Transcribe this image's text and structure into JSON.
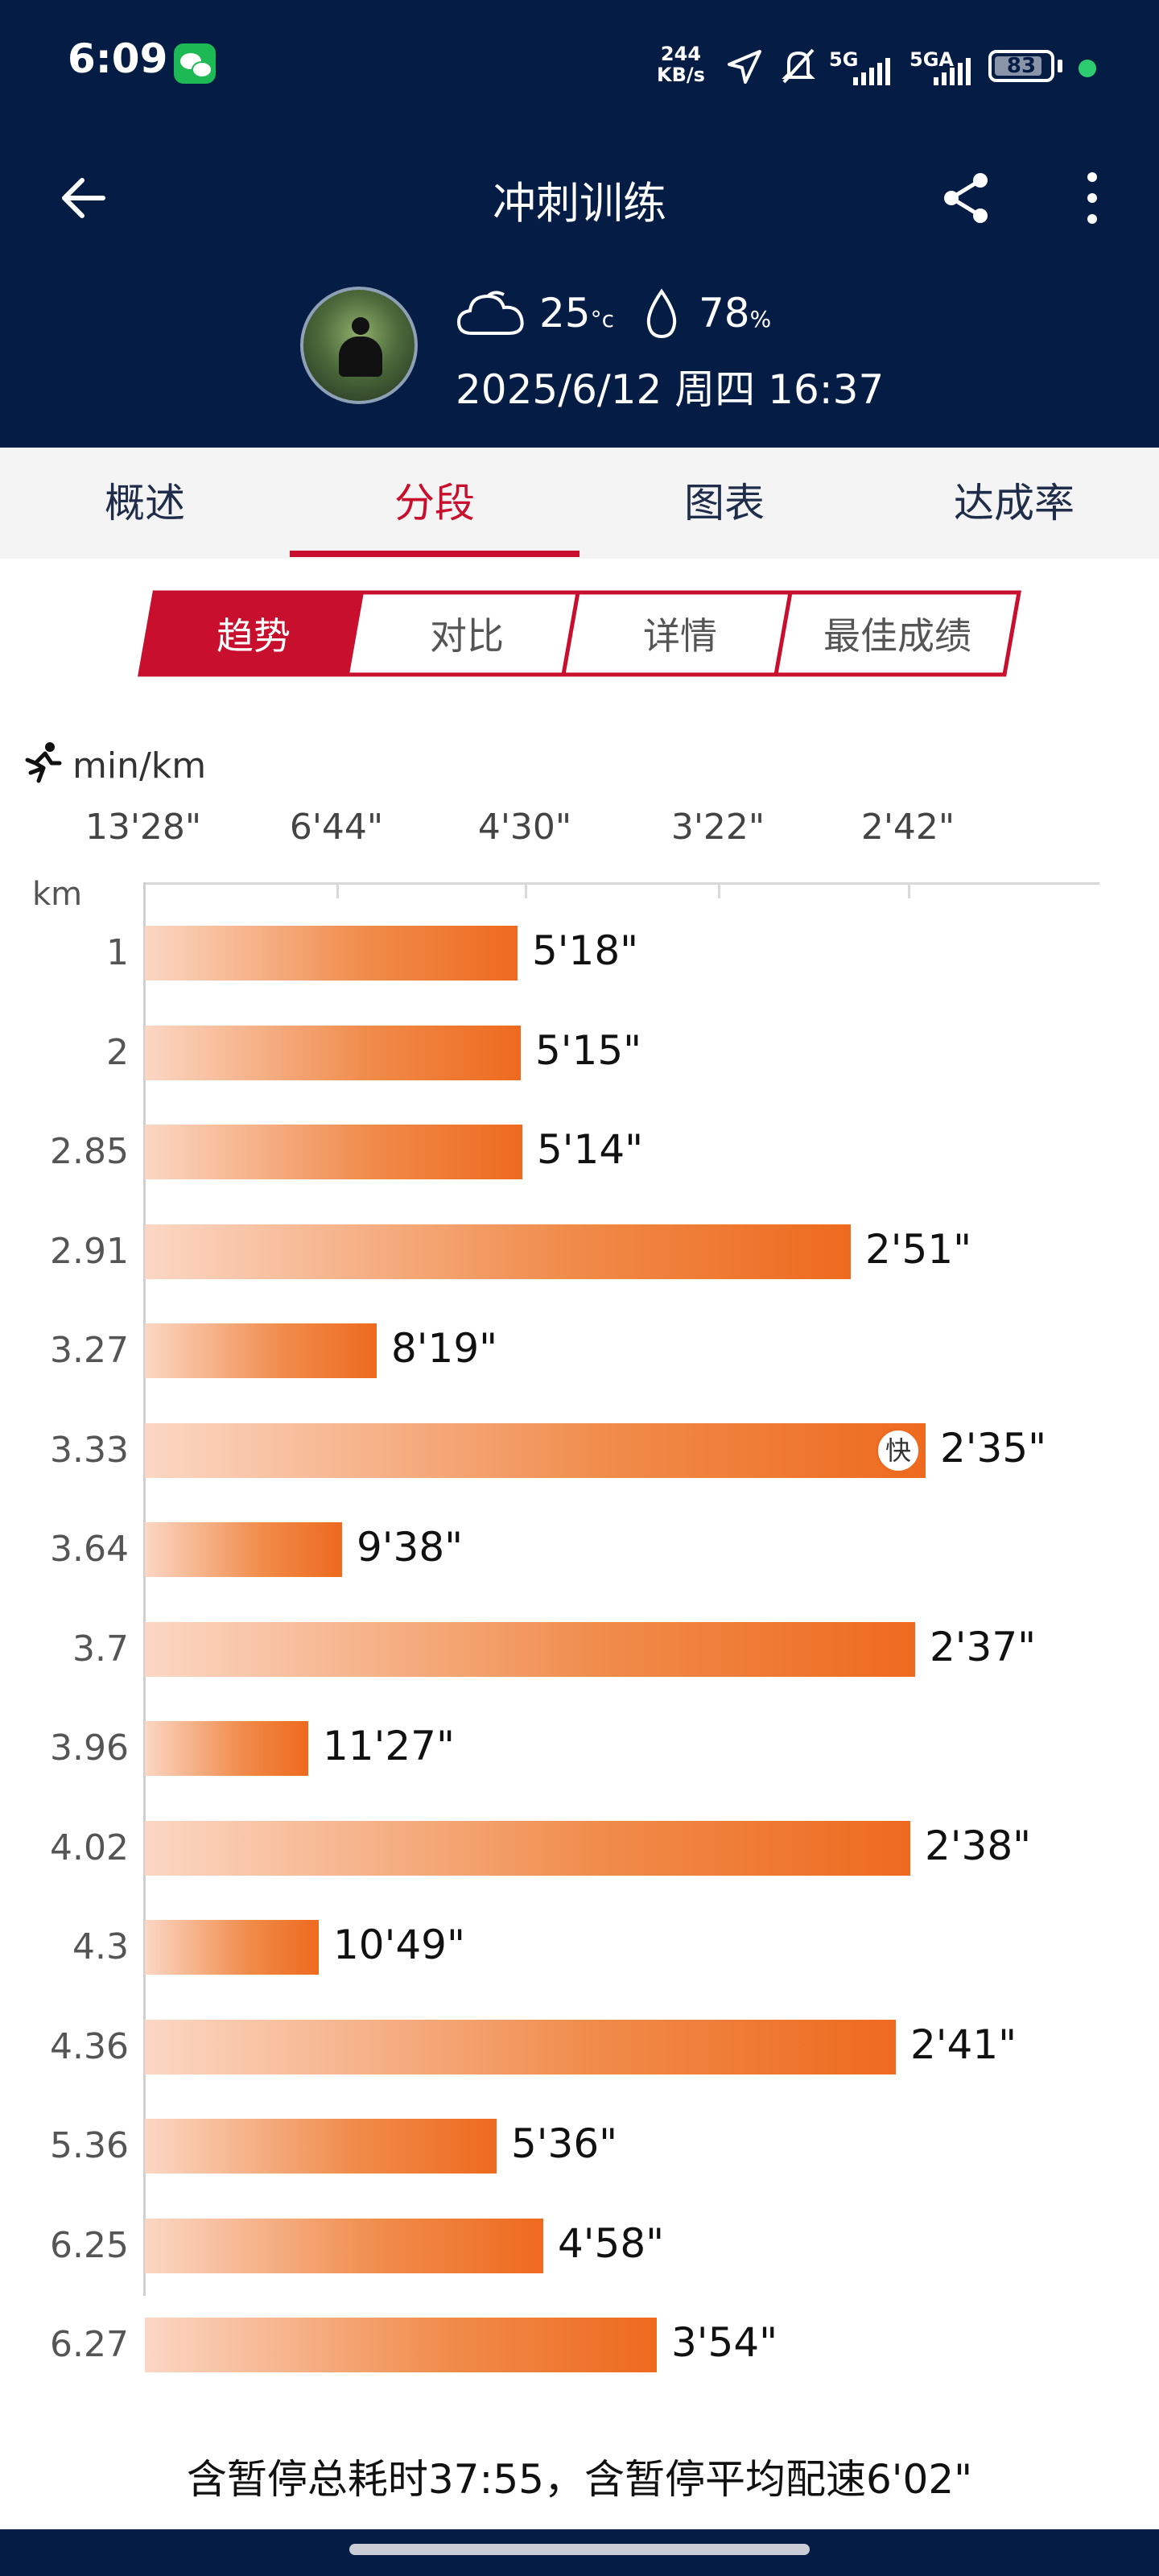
{
  "status_bar": {
    "time": "6:09",
    "net_speed_value": "244",
    "net_speed_unit": "KB/s",
    "network_1": "5G",
    "network_2": "5GA",
    "battery": "83"
  },
  "header": {
    "title": "冲刺训练"
  },
  "weather": {
    "temperature": "25",
    "temperature_unit": "°c",
    "humidity": "78",
    "humidity_unit": "%",
    "datetime": "2025/6/12 周四 16:37"
  },
  "tabs": [
    {
      "label": "概述",
      "active": false
    },
    {
      "label": "分段",
      "active": true
    },
    {
      "label": "图表",
      "active": false
    },
    {
      "label": "达成率",
      "active": false
    }
  ],
  "segments": [
    {
      "label": "趋势",
      "active": true
    },
    {
      "label": "对比",
      "active": false
    },
    {
      "label": "详情",
      "active": false
    },
    {
      "label": "最佳成绩",
      "active": false
    }
  ],
  "colors": {
    "header_bg": "#051c44",
    "accent": "#c8102e",
    "bar_start": "#fbd7c4",
    "bar_end": "#ee6a1f"
  },
  "chart_data": {
    "type": "bar",
    "orientation": "horizontal",
    "unit_label": "min/km",
    "category_axis_label": "km",
    "x_axis_ticks": [
      "13'28\"",
      "6'44\"",
      "4'30\"",
      "3'22\"",
      "2'42\""
    ],
    "fast_badge": "快",
    "categories": [
      "1",
      "2",
      "2.85",
      "2.91",
      "3.27",
      "3.33",
      "3.64",
      "3.7",
      "3.96",
      "4.02",
      "4.3",
      "4.36",
      "5.36",
      "6.25",
      "6.27"
    ],
    "value_labels": [
      "5'18\"",
      "5'15\"",
      "5'14\"",
      "2'51\"",
      "8'19\"",
      "2'35\"",
      "9'38\"",
      "2'37\"",
      "11'27\"",
      "2'38\"",
      "10'49\"",
      "2'41\"",
      "5'36\"",
      "4'58\"",
      "3'54\""
    ],
    "values_sec_per_km": [
      318,
      315,
      314,
      171,
      499,
      155,
      578,
      157,
      687,
      158,
      649,
      161,
      336,
      298,
      234
    ],
    "fastest_index": 5
  },
  "footer": {
    "summary": "含暂停总耗时37:55，含暂停平均配速6'02\""
  }
}
